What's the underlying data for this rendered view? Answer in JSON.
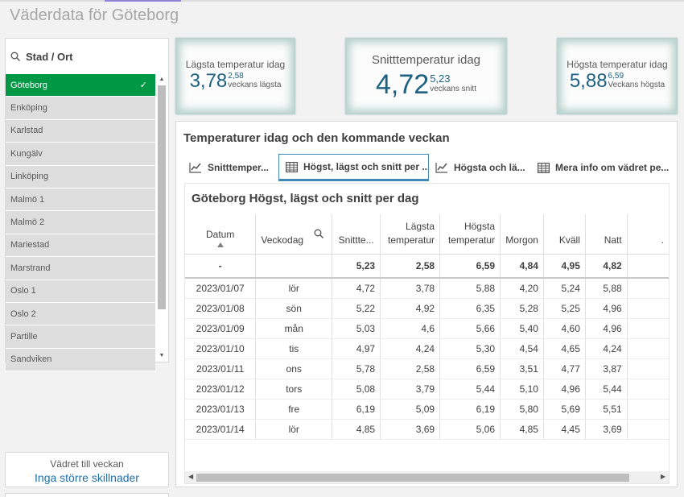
{
  "app": {
    "title": "Väderdata för Göteborg"
  },
  "filter": {
    "title": "Stad / Ort",
    "items": [
      {
        "label": "Göteborg",
        "selected": true
      },
      {
        "label": "Enköping"
      },
      {
        "label": "Karlstad"
      },
      {
        "label": "Kungälv"
      },
      {
        "label": "Linköping"
      },
      {
        "label": "Malmö 1"
      },
      {
        "label": "Malmö 2"
      },
      {
        "label": "Mariestad"
      },
      {
        "label": "Marstrand"
      },
      {
        "label": "Oslo 1"
      },
      {
        "label": "Oslo 2"
      },
      {
        "label": "Partille"
      },
      {
        "label": "Sandviken"
      }
    ],
    "check_symbol": "✓"
  },
  "kpi": {
    "low": {
      "label": "Lägsta temperatur idag",
      "value": "3,78",
      "sub_value": "2,58",
      "sub_label": "veckans lägsta"
    },
    "avg": {
      "label": "Snitttemperatur idag",
      "value": "4,72",
      "sub_value": "5,23",
      "sub_label": "veckans snitt"
    },
    "high": {
      "label": "Högsta temperatur idag",
      "value": "5,88",
      "sub_value": "6,59",
      "sub_label": "Veckans högsta"
    }
  },
  "week": {
    "line1": "Vädret till veckan",
    "line2": "Inga större skillnader"
  },
  "container": {
    "title": "Temperaturer idag och den kommande veckan",
    "tabs": [
      {
        "label": "Snitttemper...",
        "icon": "line-chart-icon"
      },
      {
        "label": "Högst, lägst och snitt per ...",
        "icon": "table-icon",
        "active": true
      },
      {
        "label": "Högsta och lä...",
        "icon": "line-chart-icon"
      },
      {
        "label": "Mera info om vädret pe...",
        "icon": "table-icon"
      }
    ]
  },
  "table": {
    "title": "Göteborg Högst, lägst och snitt per dag",
    "headers": {
      "datum": "Datum",
      "veckodag": "Veckodag",
      "snitt": "Snittte...",
      "lagsta_1": "Lägsta",
      "lagsta_2": "temperatur",
      "hogsta_1": "Högsta",
      "hogsta_2": "temperatur",
      "morgon": "Morgon",
      "kvall": "Kväll",
      "natt": "Natt",
      "more": "."
    },
    "totals": {
      "datum": "-",
      "veckodag": "",
      "snitt": "5,23",
      "lagsta": "2,58",
      "hogsta": "6,59",
      "morgon": "4,84",
      "kvall": "4,95",
      "natt": "4,82"
    },
    "rows": [
      {
        "datum": "2023/01/07",
        "veckodag": "lör",
        "snitt": "4,72",
        "lagsta": "3,78",
        "hogsta": "5,88",
        "morgon": "4,20",
        "kvall": "5,24",
        "natt": "5,88"
      },
      {
        "datum": "2023/01/08",
        "veckodag": "sön",
        "snitt": "5,22",
        "lagsta": "4,92",
        "hogsta": "6,35",
        "morgon": "5,28",
        "kvall": "5,25",
        "natt": "4,96"
      },
      {
        "datum": "2023/01/09",
        "veckodag": "mån",
        "snitt": "5,03",
        "lagsta": "4,6",
        "hogsta": "5,66",
        "morgon": "5,40",
        "kvall": "4,60",
        "natt": "4,96"
      },
      {
        "datum": "2023/01/10",
        "veckodag": "tis",
        "snitt": "4,97",
        "lagsta": "4,24",
        "hogsta": "5,30",
        "morgon": "4,54",
        "kvall": "4,65",
        "natt": "4,24"
      },
      {
        "datum": "2023/01/11",
        "veckodag": "ons",
        "snitt": "5,78",
        "lagsta": "2,58",
        "hogsta": "6,59",
        "morgon": "3,51",
        "kvall": "4,77",
        "natt": "3,87"
      },
      {
        "datum": "2023/01/12",
        "veckodag": "tors",
        "snitt": "5,08",
        "lagsta": "3,79",
        "hogsta": "5,44",
        "morgon": "5,10",
        "kvall": "4,96",
        "natt": "5,44"
      },
      {
        "datum": "2023/01/13",
        "veckodag": "fre",
        "snitt": "6,19",
        "lagsta": "5,09",
        "hogsta": "6,19",
        "morgon": "5,80",
        "kvall": "5,69",
        "natt": "5,51"
      },
      {
        "datum": "2023/01/14",
        "veckodag": "lör",
        "snitt": "4,85",
        "lagsta": "3,69",
        "hogsta": "5,06",
        "morgon": "4,85",
        "kvall": "4,45",
        "natt": "3,69"
      }
    ]
  },
  "colors": {
    "selected": "#009845",
    "accent_blue": "#1f6182",
    "link_blue": "#1f6fa8",
    "tab_border": "#3f8ab8"
  }
}
